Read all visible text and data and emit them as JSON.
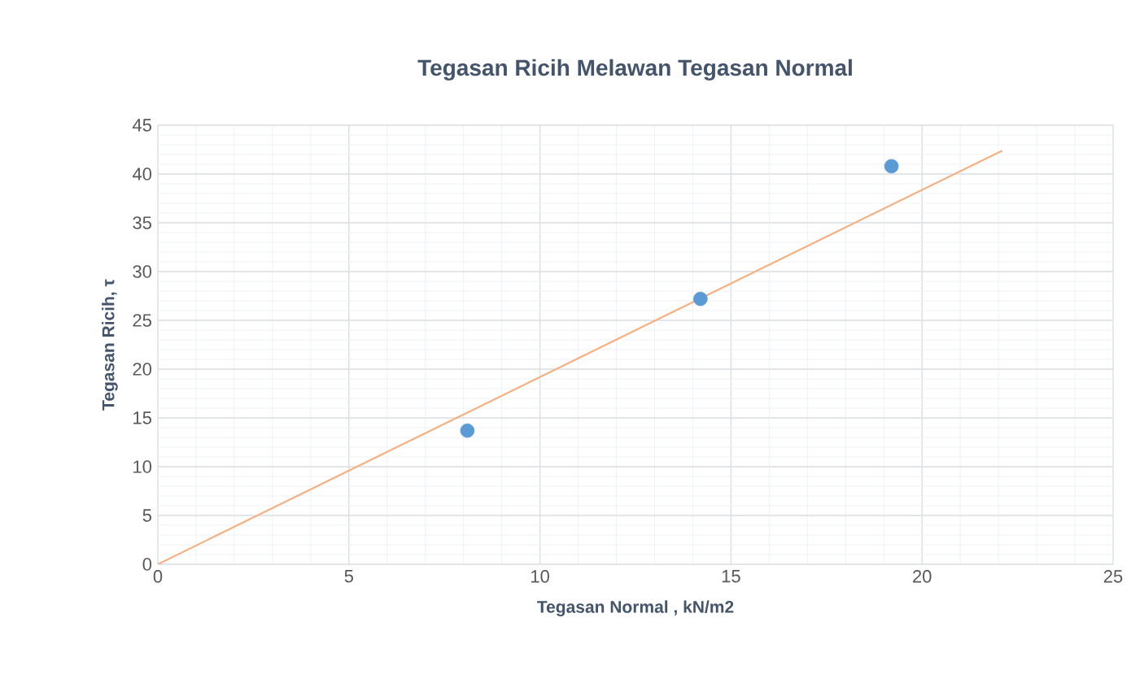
{
  "chart_data": {
    "type": "scatter",
    "title": "Tegasan Ricih Melawan Tegasan Normal",
    "xlabel": "Tegasan Normal , kN/m2",
    "ylabel": "Tegasan Ricih, τ",
    "xlim": [
      0,
      25
    ],
    "xticks": [
      0,
      5,
      10,
      15,
      20,
      25
    ],
    "ylim": [
      0,
      45
    ],
    "yticks": [
      0,
      5,
      10,
      15,
      20,
      25,
      30,
      35,
      40,
      45
    ],
    "grid": true,
    "series": [
      {
        "color": "#5b9bd5",
        "marker": "circle",
        "x": [
          8.1,
          14.2,
          19.2
        ],
        "values": [
          13.7,
          27.2,
          40.8
        ]
      },
      {
        "type": "line",
        "color": "#f4b183",
        "marker": "none",
        "line_style": "solid",
        "x": [
          0,
          22.1
        ],
        "values": [
          0,
          42.4
        ]
      }
    ]
  }
}
